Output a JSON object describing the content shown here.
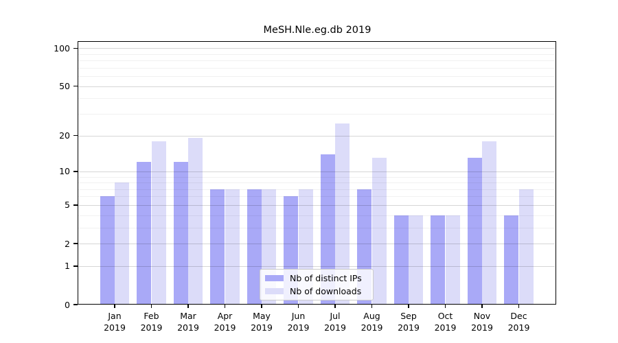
{
  "chart_data": {
    "type": "bar",
    "title": "MeSH.Nle.eg.db 2019",
    "categories": [
      "Jan",
      "Feb",
      "Mar",
      "Apr",
      "May",
      "Jun",
      "Jul",
      "Aug",
      "Sep",
      "Oct",
      "Nov",
      "Dec"
    ],
    "category_year": "2019",
    "series": [
      {
        "name": "Nb of distinct IPs",
        "color": "#a9a9f7",
        "values": [
          6,
          12,
          12,
          7,
          7,
          6,
          14,
          7,
          4,
          4,
          13,
          4
        ]
      },
      {
        "name": "Nb of downloads",
        "color": "#dcdcf9",
        "values": [
          8,
          18,
          19,
          7,
          7,
          7,
          25,
          13,
          4,
          4,
          18,
          7
        ]
      }
    ],
    "xlabel": "",
    "ylabel": "",
    "y_scale": "log1p",
    "y_ticks": [
      0,
      1,
      2,
      5,
      10,
      20,
      50,
      100
    ],
    "y_minor_gridlines": [
      3,
      4,
      6,
      7,
      8,
      9,
      30,
      40,
      60,
      70,
      80,
      90
    ],
    "ylim": [
      0,
      110
    ],
    "grid": "on",
    "legend_position": "inside-bottom-center"
  }
}
